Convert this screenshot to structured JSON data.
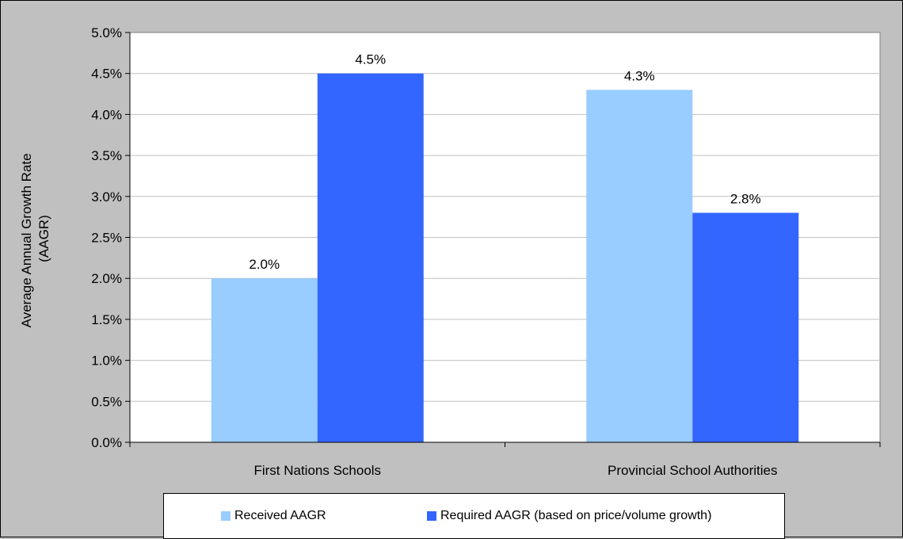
{
  "chart_data": {
    "type": "bar",
    "categories": [
      "First Nations Schools",
      "Provincial School Authorities"
    ],
    "series": [
      {
        "name": "Received AAGR",
        "values": [
          2.0,
          4.3
        ],
        "labels": [
          "2.0%",
          "4.3%"
        ],
        "color": "#99ccff"
      },
      {
        "name": "Required AAGR (based on price/volume growth)",
        "values": [
          4.5,
          2.8
        ],
        "labels": [
          "4.5%",
          "2.8%"
        ],
        "color": "#3366ff"
      }
    ],
    "ylabel_line1": "Average Annual Growth Rate",
    "ylabel_line2": "(AAGR)",
    "ylim": [
      0,
      5.0
    ],
    "yticks": [
      "0.0%",
      "0.5%",
      "1.0%",
      "1.5%",
      "2.0%",
      "2.5%",
      "3.0%",
      "3.5%",
      "4.0%",
      "4.5%",
      "5.0%"
    ],
    "grid": true,
    "legend_position": "bottom",
    "plot_background": "#ffffff",
    "figure_background": "#c0c0c0",
    "gridline_color": "#c0c0c0"
  }
}
